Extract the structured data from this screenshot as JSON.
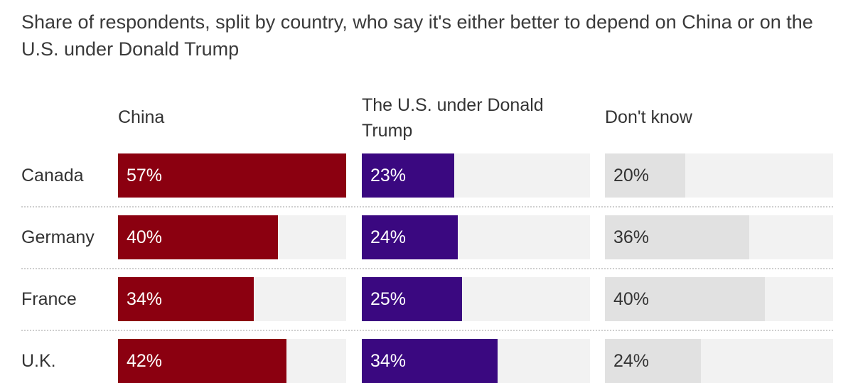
{
  "chart_data": {
    "type": "bar",
    "title": "Share of respondents, split by country, who say it's either better to depend on China or on the U.S. under Donald Trump",
    "categories": [
      "Canada",
      "Germany",
      "France",
      "U.K."
    ],
    "series": [
      {
        "name": "China",
        "values": [
          57,
          40,
          34,
          42
        ],
        "labels": [
          "57%",
          "40%",
          "34%",
          "42%"
        ],
        "color": "#8b0010",
        "text_color": "#ffffff"
      },
      {
        "name": "The U.S. under Donald Trump",
        "values": [
          23,
          24,
          25,
          34
        ],
        "labels": [
          "23%",
          "24%",
          "25%",
          "34%"
        ],
        "color": "#3a0880",
        "text_color": "#ffffff"
      },
      {
        "name": "Don't know",
        "values": [
          20,
          36,
          40,
          24
        ],
        "labels": [
          "20%",
          "36%",
          "40%",
          "24%"
        ],
        "color": "#e1e1e1",
        "text_color": "#333333"
      }
    ],
    "ylim": [
      0,
      57
    ],
    "unit": "%"
  }
}
